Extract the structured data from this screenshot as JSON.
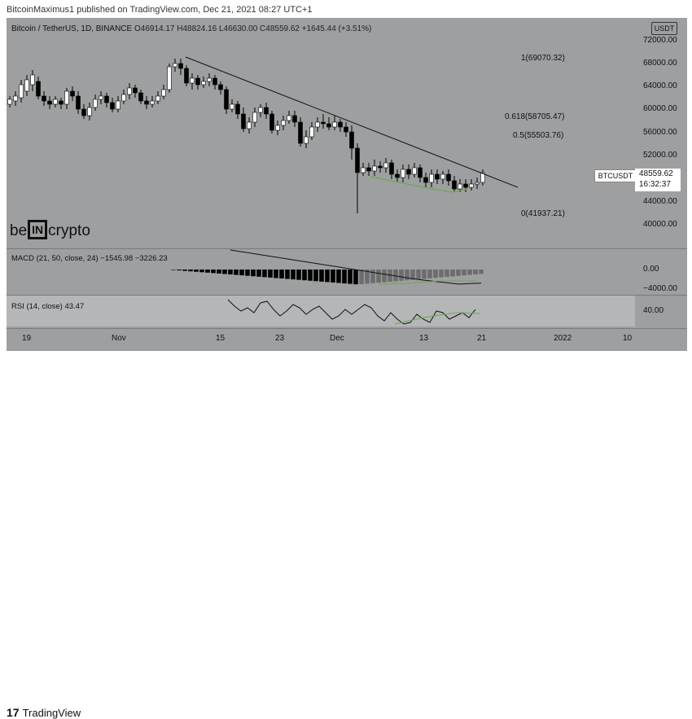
{
  "header": {
    "published": "BitcoinMaximus1 published on TradingView.com, Dec 21, 2021 08:27 UTC+1"
  },
  "legend": {
    "symbol": "Bitcoin / TetherUS, 1D, BINANCE",
    "o": "O46914.17",
    "h": "H48824.16",
    "l": "L46630.00",
    "c": "C48559.62",
    "change": "+1645.44 (+3.51%)"
  },
  "currency_badge": "USDT",
  "price_axis": [
    "72000.00",
    "68000.00",
    "64000.00",
    "60000.00",
    "56000.00",
    "52000.00",
    "44000.00",
    "40000.00"
  ],
  "price_tag": {
    "symbol": "BTCUSDT",
    "price": "48559.62",
    "countdown": "16:32:37"
  },
  "fib_levels": [
    "1(69070.32)",
    "0.618(58705.47)",
    "0.5(55503.76)",
    "0(41937.21)"
  ],
  "logo": {
    "left": "be",
    "mid": "IN",
    "right": "crypto"
  },
  "macd": {
    "label": "MACD (21, 50, close, 24)",
    "v1": "−1545.98",
    "v2": "−3226.23",
    "axis": [
      "0.00",
      "−4000.00"
    ]
  },
  "rsi": {
    "label": "RSI (14, close)",
    "value": "43.47",
    "axis": "40.00"
  },
  "x_axis": [
    "19",
    "Nov",
    "15",
    "23",
    "Dec",
    "13",
    "21",
    "2022",
    "10"
  ],
  "footer": {
    "brand": "TradingView"
  },
  "colors": {
    "background": "#9e9fa1",
    "candle_up": "#ffffff",
    "candle_down": "#000000",
    "support": "#6aaa4f"
  }
}
